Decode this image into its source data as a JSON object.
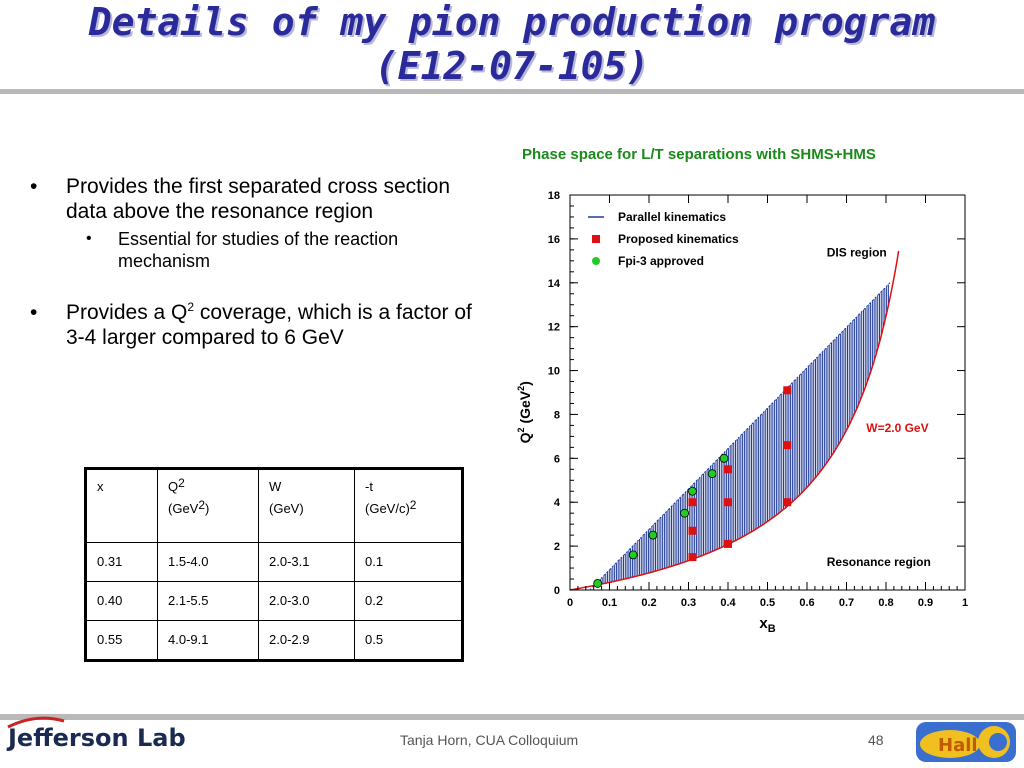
{
  "slide": {
    "title_line1": "Details of my pion production program",
    "title_line2": "(E12-07-105)",
    "bullets": [
      {
        "text": "Provides the first separated cross section data above the resonance region"
      },
      {
        "sub": "Essential for studies of the reaction mechanism"
      },
      {
        "pre": "Provides a Q",
        "sup": "2",
        "post": " coverage, which is a factor of 3-4 larger compared to 6 GeV"
      }
    ],
    "footer_center": "Tanja Horn, CUA Colloquium",
    "page_number": "48",
    "logo_text": "Jefferson Lab",
    "hallc_text": "Hall C"
  },
  "table": {
    "headers": [
      {
        "l1": "x",
        "l2": "",
        "l2sup": ""
      },
      {
        "l1": "Q",
        "l1sup": "2",
        "l2": "(GeV",
        "l2sup": "2",
        "l2end": ")"
      },
      {
        "l1": "W",
        "l2": "(GeV)",
        "l2sup": ""
      },
      {
        "l1": "-t",
        "l2": "(GeV/c)",
        "l2sup": "2"
      }
    ],
    "rows": [
      [
        "0.31",
        "1.5-4.0",
        "2.0-3.1",
        "0.1"
      ],
      [
        "0.40",
        "2.1-5.5",
        "2.0-3.0",
        "0.2"
      ],
      [
        "0.55",
        "4.0-9.1",
        "2.0-2.9",
        "0.5"
      ]
    ]
  },
  "chart_data": {
    "type": "scatter",
    "title": "Phase space for L/T separations with SHMS+HMS",
    "xlabel": "x",
    "xlabel_sub": "B",
    "ylabel": "Q",
    "ylabel_sup": "2",
    "ylabel_unit_pre": " (GeV",
    "ylabel_unit_sup": "2",
    "ylabel_unit_post": ")",
    "xlim": [
      0,
      1
    ],
    "ylim": [
      0,
      18
    ],
    "xticks": [
      "0",
      "0.1",
      "0.2",
      "0.3",
      "0.4",
      "0.5",
      "0.6",
      "0.7",
      "0.8",
      "0.9",
      "1"
    ],
    "yticks": [
      "0",
      "2",
      "4",
      "6",
      "8",
      "10",
      "12",
      "14",
      "16",
      "18"
    ],
    "legend": [
      {
        "label": "Parallel kinematics",
        "marker": "line",
        "color": "#1f3a9a"
      },
      {
        "label": "Proposed kinematics",
        "marker": "square",
        "color": "#dd1111"
      },
      {
        "label": "Fpi-3 approved",
        "marker": "circle",
        "color": "#22cc22"
      }
    ],
    "legend_position": "top-left",
    "annotations": [
      {
        "text": "DIS region",
        "x": 0.65,
        "y": 15.2
      },
      {
        "text": "W=2.0 GeV",
        "x": 0.75,
        "y": 7.2,
        "color": "#dd1111"
      },
      {
        "text": "Resonance region",
        "x": 0.65,
        "y": 1.1
      }
    ],
    "w_curve": {
      "name": "W=2.0 GeV",
      "W2": 4.0,
      "proton_mass2": 0.88,
      "color": "#dd1111"
    },
    "shaded_band": {
      "color": "#1f3a9a",
      "x_from": 0.05,
      "x_to": 0.81,
      "upper_line": [
        [
          0.05,
          0.0
        ],
        [
          0.81,
          14.0
        ]
      ]
    },
    "series": [
      {
        "name": "Proposed kinematics",
        "points": [
          [
            0.31,
            1.5
          ],
          [
            0.31,
            2.7
          ],
          [
            0.31,
            4.0
          ],
          [
            0.4,
            2.1
          ],
          [
            0.4,
            4.0
          ],
          [
            0.4,
            5.5
          ],
          [
            0.55,
            4.0
          ],
          [
            0.55,
            6.6
          ],
          [
            0.55,
            9.1
          ]
        ]
      },
      {
        "name": "Fpi-3 approved",
        "points": [
          [
            0.07,
            0.3
          ],
          [
            0.16,
            1.6
          ],
          [
            0.21,
            2.5
          ],
          [
            0.29,
            3.5
          ],
          [
            0.31,
            4.5
          ],
          [
            0.36,
            5.3
          ],
          [
            0.39,
            6.0
          ]
        ]
      }
    ]
  }
}
